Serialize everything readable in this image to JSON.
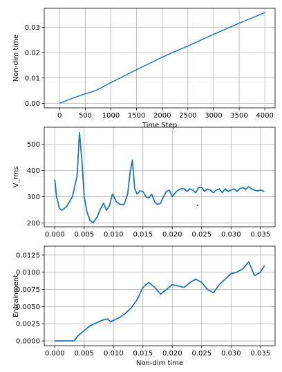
{
  "chart_data": [
    {
      "type": "line",
      "xlabel": "Time Step",
      "ylabel": "Non-dim time",
      "xlim": [
        -300,
        4200
      ],
      "ylim": [
        -0.0018,
        0.0375
      ],
      "xticks": [
        0,
        500,
        1000,
        1500,
        2000,
        2500,
        3000,
        3500,
        4000
      ],
      "xtick_labels": [
        "0",
        "500",
        "1000",
        "1500",
        "2000",
        "2500",
        "3000",
        "3500",
        "4000"
      ],
      "yticks": [
        0.0,
        0.01,
        0.02,
        0.03
      ],
      "ytick_labels": [
        "0.00",
        "0.01",
        "0.02",
        "0.03"
      ],
      "grid": true,
      "color": "#1f77b4",
      "series": [
        {
          "x": [
            0,
            250,
            500,
            650,
            800,
            1000,
            1200,
            1500,
            1800,
            2000,
            2200,
            2500,
            3000,
            3500,
            4000
          ],
          "y": [
            0.0,
            0.002,
            0.0038,
            0.0046,
            0.006,
            0.0082,
            0.0102,
            0.0133,
            0.0162,
            0.0182,
            0.02,
            0.0226,
            0.0272,
            0.0316,
            0.0358
          ]
        }
      ]
    },
    {
      "type": "line",
      "xlabel": "",
      "ylabel": "V_rms",
      "xlim": [
        -0.0018,
        0.0375
      ],
      "ylim": [
        185,
        565
      ],
      "xticks": [
        0.0,
        0.005,
        0.01,
        0.015,
        0.02,
        0.025,
        0.03,
        0.035
      ],
      "xtick_labels": [
        "0.000",
        "0.005",
        "0.010",
        "0.015",
        "0.020",
        "0.025",
        "0.030",
        "0.035"
      ],
      "yticks": [
        200,
        300,
        400,
        500
      ],
      "ytick_labels": [
        "200",
        "300",
        "400",
        "500"
      ],
      "grid": true,
      "color": "#1f77b4",
      "series": [
        {
          "x": [
            0.0,
            0.0003,
            0.0008,
            0.0012,
            0.002,
            0.003,
            0.0038,
            0.0042,
            0.0046,
            0.005,
            0.0055,
            0.006,
            0.0065,
            0.0072,
            0.0078,
            0.0083,
            0.0088,
            0.0093,
            0.0098,
            0.0105,
            0.0112,
            0.0118,
            0.0124,
            0.0128,
            0.0132,
            0.0136,
            0.014,
            0.0145,
            0.015,
            0.0155,
            0.016,
            0.0165,
            0.017,
            0.0175,
            0.018,
            0.0185,
            0.019,
            0.0195,
            0.02,
            0.0205,
            0.021,
            0.0215,
            0.022,
            0.0225,
            0.023,
            0.0235,
            0.024,
            0.0245,
            0.025,
            0.0255,
            0.026,
            0.0265,
            0.027,
            0.0275,
            0.028,
            0.0285,
            0.029,
            0.0295,
            0.03,
            0.0305,
            0.031,
            0.0315,
            0.032,
            0.0325,
            0.033,
            0.0335,
            0.034,
            0.0345,
            0.035,
            0.0357
          ],
          "y": [
            365,
            300,
            255,
            248,
            262,
            300,
            380,
            545,
            440,
            300,
            240,
            210,
            200,
            222,
            255,
            275,
            248,
            265,
            310,
            280,
            270,
            270,
            310,
            390,
            440,
            330,
            310,
            322,
            320,
            300,
            295,
            310,
            280,
            270,
            275,
            300,
            320,
            325,
            300,
            315,
            325,
            330,
            330,
            320,
            330,
            325,
            315,
            335,
            335,
            320,
            330,
            325,
            315,
            325,
            330,
            315,
            330,
            320,
            325,
            330,
            320,
            330,
            335,
            328,
            338,
            330,
            325,
            322,
            325,
            320
          ]
        }
      ],
      "outlier_points": [
        {
          "x": 0.0243,
          "y": 267
        }
      ]
    },
    {
      "type": "line",
      "xlabel": "Non-dim time",
      "ylabel": "Entrainment",
      "xlim": [
        -0.0018,
        0.0375
      ],
      "ylim": [
        -0.0007,
        0.0138
      ],
      "xticks": [
        0.0,
        0.005,
        0.01,
        0.015,
        0.02,
        0.025,
        0.03,
        0.035
      ],
      "xtick_labels": [
        "0.000",
        "0.005",
        "0.010",
        "0.015",
        "0.020",
        "0.025",
        "0.030",
        "0.035"
      ],
      "yticks": [
        0.0,
        0.0025,
        0.005,
        0.0075,
        0.01,
        0.0125
      ],
      "ytick_labels": [
        "0.0000",
        "0.0025",
        "0.0050",
        "0.0075",
        "0.0100",
        "0.0125"
      ],
      "grid": true,
      "color": "#1f77b4",
      "series": [
        {
          "x": [
            0.0,
            0.0033,
            0.004,
            0.005,
            0.006,
            0.007,
            0.008,
            0.009,
            0.0095,
            0.01,
            0.011,
            0.012,
            0.013,
            0.014,
            0.015,
            0.016,
            0.017,
            0.018,
            0.019,
            0.02,
            0.021,
            0.022,
            0.023,
            0.024,
            0.025,
            0.026,
            0.027,
            0.028,
            0.029,
            0.03,
            0.031,
            0.032,
            0.033,
            0.034,
            0.035,
            0.0357
          ],
          "y": [
            0.0,
            0.0,
            0.0008,
            0.0015,
            0.0022,
            0.0026,
            0.003,
            0.0032,
            0.0028,
            0.003,
            0.0034,
            0.004,
            0.0048,
            0.006,
            0.0078,
            0.0085,
            0.0078,
            0.0068,
            0.0075,
            0.0082,
            0.008,
            0.0078,
            0.0085,
            0.009,
            0.0085,
            0.0075,
            0.007,
            0.0082,
            0.009,
            0.0098,
            0.01,
            0.0105,
            0.0115,
            0.0095,
            0.01,
            0.011
          ]
        }
      ]
    }
  ]
}
